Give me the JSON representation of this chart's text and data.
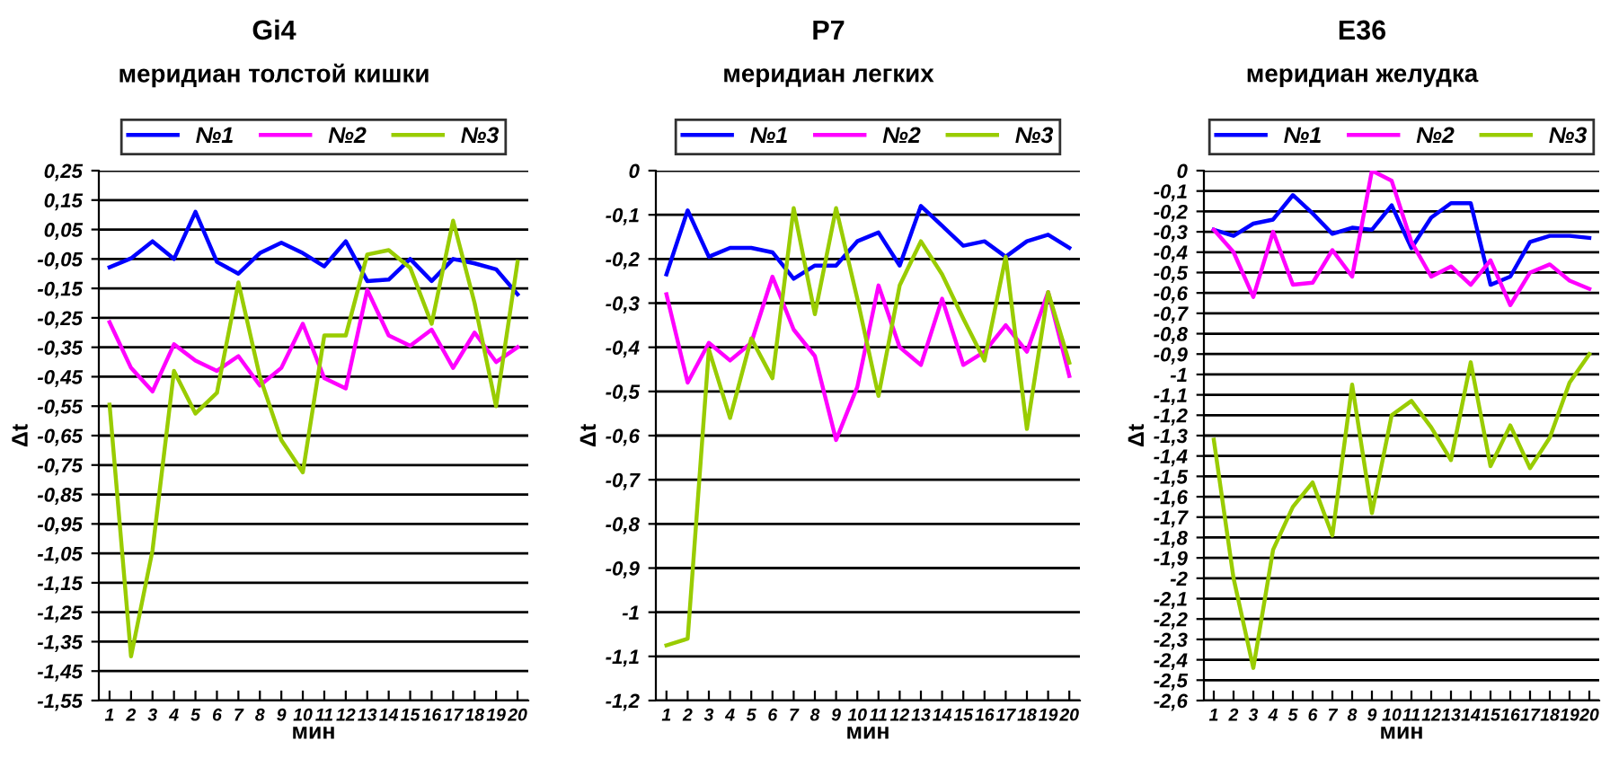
{
  "chart_data": [
    {
      "type": "line",
      "title": "Gi4",
      "subtitle": "меридиан толстой кишки",
      "xlabel": "мин",
      "ylabel": "Δt",
      "categories": [
        "1",
        "2",
        "3",
        "4",
        "5",
        "6",
        "7",
        "8",
        "9",
        "10",
        "11",
        "12",
        "13",
        "14",
        "15",
        "16",
        "17",
        "18",
        "19",
        "20"
      ],
      "series": [
        {
          "name": "№1",
          "color": "#0000ff",
          "values": [
            -0.078,
            -0.048,
            0.01,
            -0.05,
            0.11,
            -0.06,
            -0.1,
            -0.03,
            0.005,
            -0.03,
            -0.075,
            0.01,
            -0.125,
            -0.12,
            -0.05,
            -0.125,
            -0.05,
            -0.065,
            -0.085,
            -0.17
          ]
        },
        {
          "name": "№2",
          "color": "#ff00ff",
          "values": [
            -0.265,
            -0.42,
            -0.5,
            -0.34,
            -0.395,
            -0.43,
            -0.38,
            -0.48,
            -0.42,
            -0.27,
            -0.455,
            -0.49,
            -0.155,
            -0.31,
            -0.345,
            -0.29,
            -0.42,
            -0.3,
            -0.4,
            -0.35
          ]
        },
        {
          "name": "№3",
          "color": "#99cc00",
          "values": [
            -0.545,
            -1.4,
            -1.04,
            -0.43,
            -0.575,
            -0.505,
            -0.13,
            -0.45,
            -0.665,
            -0.775,
            -0.31,
            -0.31,
            -0.035,
            -0.02,
            -0.08,
            -0.27,
            0.08,
            -0.2,
            -0.55,
            -0.06
          ]
        }
      ],
      "ylim": [
        -1.55,
        0.25
      ],
      "yticks": [
        {
          "value": 0.25,
          "label": "0,25"
        },
        {
          "value": 0.15,
          "label": "0,15"
        },
        {
          "value": 0.05,
          "label": "0,05"
        },
        {
          "value": -0.05,
          "label": "-0,05"
        },
        {
          "value": -0.15,
          "label": "-0,15"
        },
        {
          "value": -0.25,
          "label": "-0,25"
        },
        {
          "value": -0.35,
          "label": "-0,35"
        },
        {
          "value": -0.45,
          "label": "-0,45"
        },
        {
          "value": -0.55,
          "label": "-0,55"
        },
        {
          "value": -0.65,
          "label": "-0,65"
        },
        {
          "value": -0.75,
          "label": "-0,75"
        },
        {
          "value": -0.85,
          "label": "-0,85"
        },
        {
          "value": -0.95,
          "label": "-0,95"
        },
        {
          "value": -1.05,
          "label": "-1,05"
        },
        {
          "value": -1.15,
          "label": "-1,15"
        },
        {
          "value": -1.25,
          "label": "-1,25"
        },
        {
          "value": -1.35,
          "label": "-1,35"
        },
        {
          "value": -1.45,
          "label": "-1,45"
        },
        {
          "value": -1.55,
          "label": "-1,55"
        }
      ],
      "grid": "y",
      "legend": "top",
      "marker": "none",
      "line_style": "solid"
    },
    {
      "type": "line",
      "title": "P7",
      "subtitle": "меридиан легких",
      "xlabel": "мин",
      "ylabel": "Δt",
      "categories": [
        "1",
        "2",
        "3",
        "4",
        "5",
        "6",
        "7",
        "8",
        "9",
        "10",
        "11",
        "12",
        "13",
        "14",
        "15",
        "16",
        "17",
        "18",
        "19",
        "20"
      ],
      "series": [
        {
          "name": "№1",
          "color": "#0000ff",
          "values": [
            -0.235,
            -0.09,
            -0.195,
            -0.175,
            -0.175,
            -0.185,
            -0.245,
            -0.215,
            -0.215,
            -0.16,
            -0.14,
            -0.215,
            -0.08,
            -0.125,
            -0.17,
            -0.16,
            -0.195,
            -0.16,
            -0.145,
            -0.175
          ]
        },
        {
          "name": "№2",
          "color": "#ff00ff",
          "values": [
            -0.28,
            -0.48,
            -0.39,
            -0.43,
            -0.39,
            -0.24,
            -0.36,
            -0.42,
            -0.61,
            -0.49,
            -0.26,
            -0.4,
            -0.44,
            -0.29,
            -0.44,
            -0.41,
            -0.35,
            -0.41,
            -0.275,
            -0.465
          ]
        },
        {
          "name": "№3",
          "color": "#99cc00",
          "values": [
            -1.075,
            -1.06,
            -0.405,
            -0.56,
            -0.38,
            -0.47,
            -0.085,
            -0.325,
            -0.085,
            -0.29,
            -0.51,
            -0.26,
            -0.16,
            -0.235,
            -0.335,
            -0.43,
            -0.195,
            -0.585,
            -0.275,
            -0.435
          ]
        }
      ],
      "ylim": [
        -1.2,
        0
      ],
      "yticks": [
        0,
        {
          "value": -0.1,
          "label": "-0,1"
        },
        {
          "value": -0.2,
          "label": "-0,2"
        },
        {
          "value": -0.3,
          "label": "-0,3"
        },
        {
          "value": -0.4,
          "label": "-0,4"
        },
        {
          "value": -0.5,
          "label": "-0,5"
        },
        {
          "value": -0.6,
          "label": "-0,6"
        },
        {
          "value": -0.7,
          "label": "-0,7"
        },
        {
          "value": -0.8,
          "label": "-0,8"
        },
        {
          "value": -0.9,
          "label": "-0,9"
        },
        -1,
        {
          "value": -1.1,
          "label": "-1,1"
        },
        {
          "value": -1.2,
          "label": "-1,2"
        }
      ],
      "grid": "y",
      "legend": "top",
      "marker": "none",
      "line_style": "solid"
    },
    {
      "type": "line",
      "title": "E36",
      "subtitle": "меридиан желудка",
      "xlabel": "мин",
      "ylabel": "Δt",
      "categories": [
        "1",
        "2",
        "3",
        "4",
        "5",
        "6",
        "7",
        "8",
        "9",
        "10",
        "11",
        "12",
        "13",
        "14",
        "15",
        "16",
        "17",
        "18",
        "19",
        "20"
      ],
      "series": [
        {
          "name": "№1",
          "color": "#0000ff",
          "values": [
            -0.29,
            -0.32,
            -0.26,
            -0.24,
            -0.12,
            -0.21,
            -0.31,
            -0.28,
            -0.29,
            -0.17,
            -0.38,
            -0.23,
            -0.16,
            -0.16,
            -0.56,
            -0.52,
            -0.35,
            -0.32,
            -0.32,
            -0.33
          ]
        },
        {
          "name": "№2",
          "color": "#ff00ff",
          "values": [
            -0.29,
            -0.4,
            -0.62,
            -0.3,
            -0.56,
            -0.55,
            -0.39,
            -0.52,
            0,
            -0.05,
            -0.35,
            -0.52,
            -0.47,
            -0.56,
            -0.44,
            -0.66,
            -0.5,
            -0.46,
            -0.54,
            -0.58
          ]
        },
        {
          "name": "№3",
          "color": "#99cc00",
          "values": [
            -1.32,
            -2.0,
            -2.44,
            -1.86,
            -1.65,
            -1.53,
            -1.79,
            -1.05,
            -1.68,
            -1.2,
            -1.13,
            -1.26,
            -1.42,
            -0.94,
            -1.45,
            -1.25,
            -1.46,
            -1.31,
            -1.04,
            -0.9
          ]
        }
      ],
      "ylim": [
        -2.6,
        0
      ],
      "yticks": [
        0,
        {
          "value": -0.1,
          "label": "-0,1"
        },
        {
          "value": -0.2,
          "label": "-0,2"
        },
        {
          "value": -0.3,
          "label": "-0,3"
        },
        {
          "value": -0.4,
          "label": "-0,4"
        },
        {
          "value": -0.5,
          "label": "-0,5"
        },
        {
          "value": -0.6,
          "label": "-0,6"
        },
        {
          "value": -0.7,
          "label": "-0,7"
        },
        {
          "value": -0.8,
          "label": "-0,8"
        },
        {
          "value": -0.9,
          "label": "-0,9"
        },
        -1,
        {
          "value": -1.1,
          "label": "-1,1"
        },
        {
          "value": -1.2,
          "label": "-1,2"
        },
        {
          "value": -1.3,
          "label": "-1,3"
        },
        {
          "value": -1.4,
          "label": "-1,4"
        },
        {
          "value": -1.5,
          "label": "-1,5"
        },
        {
          "value": -1.6,
          "label": "-1,6"
        },
        {
          "value": -1.7,
          "label": "-1,7"
        },
        {
          "value": -1.8,
          "label": "-1,8"
        },
        {
          "value": -1.9,
          "label": "-1,9"
        },
        -2,
        {
          "value": -2.1,
          "label": "-2,1"
        },
        {
          "value": -2.2,
          "label": "-2,2"
        },
        {
          "value": -2.3,
          "label": "-2,3"
        },
        {
          "value": -2.4,
          "label": "-2,4"
        },
        {
          "value": -2.5,
          "label": "-2,5"
        },
        {
          "value": -2.6,
          "label": "-2,6"
        }
      ],
      "grid": "y",
      "legend": "top",
      "marker": "none",
      "line_style": "solid"
    }
  ]
}
